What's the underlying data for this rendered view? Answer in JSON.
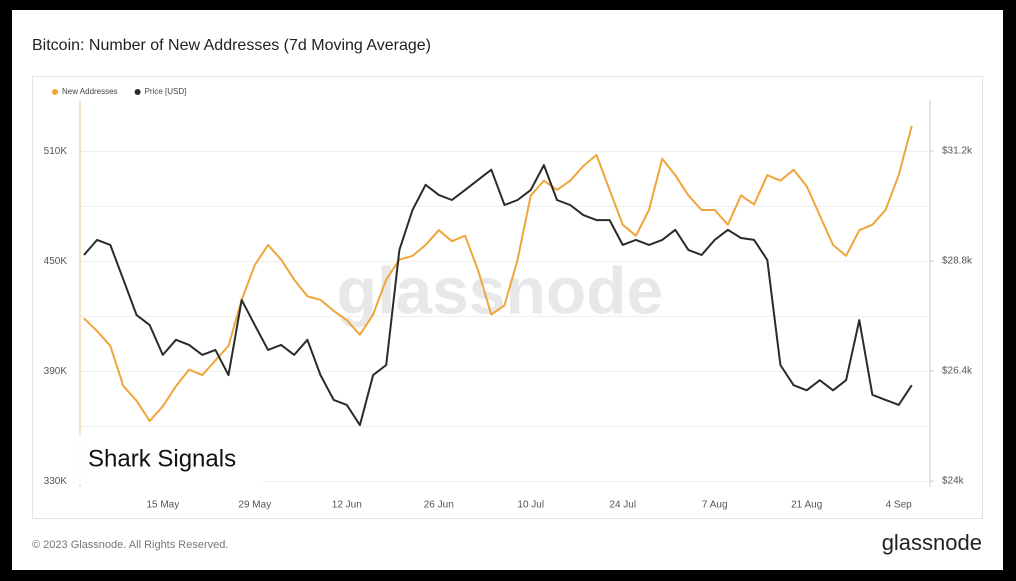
{
  "chart_data": {
    "type": "line",
    "title": "Bitcoin: Number of New Addresses (7d Moving Average)",
    "watermark": "glassnode",
    "annotation": "Shark Signals",
    "footer": "© 2023 Glassnode. All Rights Reserved.",
    "logo": "glassnode",
    "legend": "top-left",
    "grid": true,
    "categories": [
      null,
      null,
      null,
      null,
      null,
      null,
      "15 May",
      null,
      null,
      null,
      null,
      null,
      null,
      "29 May",
      null,
      null,
      null,
      null,
      null,
      null,
      "12 Jun",
      null,
      null,
      null,
      null,
      null,
      null,
      "26 Jun",
      null,
      null,
      null,
      null,
      null,
      null,
      "10 Jul",
      null,
      null,
      null,
      null,
      null,
      null,
      "24 Jul",
      null,
      null,
      null,
      null,
      null,
      null,
      "7 Aug",
      null,
      null,
      null,
      null,
      null,
      null,
      "21 Aug",
      null,
      null,
      null,
      null,
      null,
      null,
      "4 Sep",
      null
    ],
    "series": [
      {
        "name": "New Addresses",
        "color": "#f0a53a",
        "values": [
          419000,
          412000,
          404000,
          382000,
          374000,
          363000,
          371000,
          382000,
          391000,
          388000,
          396000,
          404000,
          429000,
          448000,
          459000,
          451000,
          440000,
          431000,
          429000,
          423000,
          418000,
          410000,
          421000,
          440000,
          451000,
          453000,
          459000,
          467000,
          461000,
          464000,
          445000,
          421000,
          426000,
          451000,
          486000,
          494000,
          489000,
          494000,
          502000,
          508000,
          489000,
          470000,
          464000,
          478000,
          506000,
          497000,
          486000,
          478000,
          478000,
          470000,
          486000,
          481000,
          497000,
          494000,
          500000,
          491000,
          475000,
          459000,
          453000,
          467000,
          470000,
          478000,
          497000,
          524000
        ]
      },
      {
        "name": "Price [USD]",
        "color": "#2b2b2b",
        "axis": "y2",
        "values": [
          28930,
          29260,
          29150,
          28390,
          27620,
          27400,
          26750,
          27080,
          26970,
          26750,
          26860,
          26310,
          27950,
          27400,
          26860,
          26970,
          26750,
          27080,
          26310,
          25770,
          25660,
          25220,
          26310,
          26530,
          29040,
          29910,
          30460,
          30240,
          30130,
          30350,
          30570,
          30790,
          30020,
          30130,
          30350,
          30890,
          30130,
          30020,
          29800,
          29690,
          29690,
          29150,
          29260,
          29150,
          29260,
          29480,
          29040,
          28930,
          29260,
          29480,
          29300,
          29260,
          28820,
          26530,
          26090,
          25980,
          26200,
          25980,
          26200,
          27510,
          25880,
          25770,
          25660,
          26090
        ]
      }
    ],
    "ylim": [
      327000,
      538000
    ],
    "yticks": [
      {
        "value": 330000,
        "label": "330K"
      },
      {
        "value": 390000,
        "label": "390K"
      },
      {
        "value": 450000,
        "label": "450K"
      },
      {
        "value": 510000,
        "label": "510K"
      }
    ],
    "y2lim": [
      23870,
      32310
    ],
    "y2ticks": [
      {
        "value": 24000,
        "label": "$24k"
      },
      {
        "value": 26400,
        "label": "$26.4k"
      },
      {
        "value": 28800,
        "label": "$28.8k"
      },
      {
        "value": 31200,
        "label": "$31.2k"
      }
    ]
  }
}
